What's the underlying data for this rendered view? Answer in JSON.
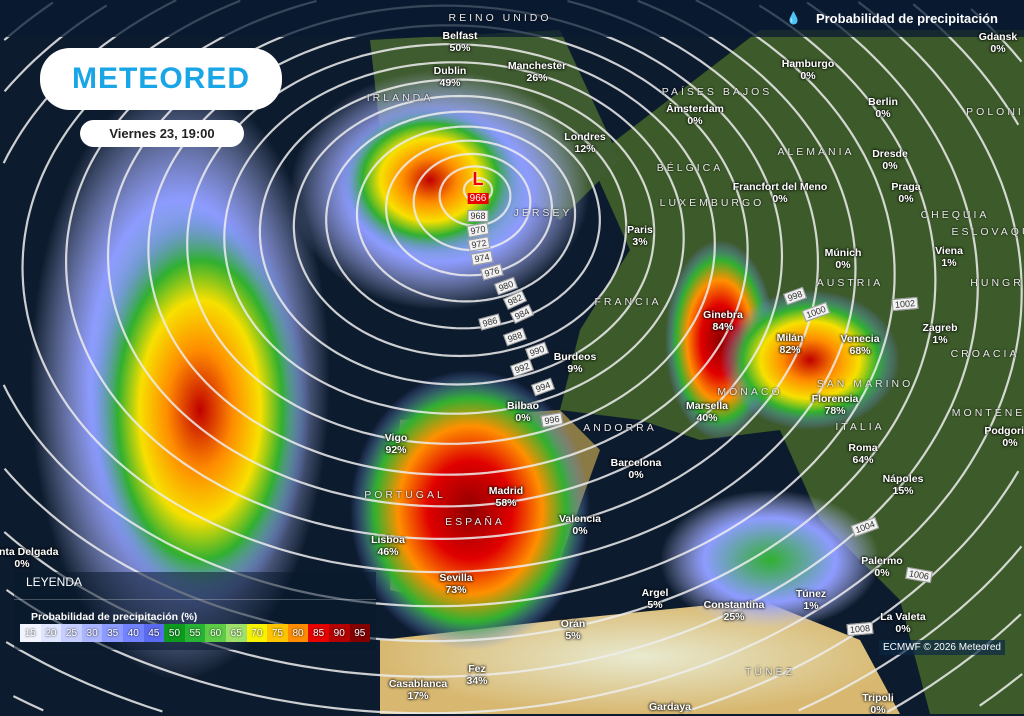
{
  "header": {
    "title": "Probabilidad de precipitación",
    "title_icon": "water-drop-icon"
  },
  "brand": {
    "logo": "METEORED",
    "color": "#1aa6e6"
  },
  "date_label": "Viernes 23, 19:00",
  "legend": {
    "heading": "LEYENDA",
    "title": "Probabilidad de precipitación (%)",
    "steps": [
      {
        "v": "15",
        "c": "#f2f4ff"
      },
      {
        "v": "20",
        "c": "#dfe4ff"
      },
      {
        "v": "25",
        "c": "#c6ceff"
      },
      {
        "v": "30",
        "c": "#aab5ff"
      },
      {
        "v": "35",
        "c": "#8d9bff"
      },
      {
        "v": "40",
        "c": "#7383ff"
      },
      {
        "v": "45",
        "c": "#5a6bf0"
      },
      {
        "v": "50",
        "c": "#0d9a1e"
      },
      {
        "v": "55",
        "c": "#28b335"
      },
      {
        "v": "60",
        "c": "#5ccb45"
      },
      {
        "v": "65",
        "c": "#9ee06a"
      },
      {
        "v": "70",
        "c": "#f7f200"
      },
      {
        "v": "75",
        "c": "#ffc400"
      },
      {
        "v": "80",
        "c": "#ff8c00"
      },
      {
        "v": "85",
        "c": "#e60000"
      },
      {
        "v": "90",
        "c": "#b40000"
      },
      {
        "v": "95",
        "c": "#820000"
      }
    ]
  },
  "credit": "ECMWF © 2026 Meteored",
  "low": {
    "symbol": "L",
    "pressure": "966"
  },
  "cities": [
    {
      "name": "Belfast",
      "p": "50%"
    },
    {
      "name": "Dublin",
      "p": "49%"
    },
    {
      "name": "Manchester",
      "p": "26%"
    },
    {
      "name": "Londres",
      "p": "12%"
    },
    {
      "name": "Paris",
      "p": "3%"
    },
    {
      "name": "Hamburgo",
      "p": "0%"
    },
    {
      "name": "Ámsterdam",
      "p": "0%"
    },
    {
      "name": "Berlin",
      "p": "0%"
    },
    {
      "name": "Dresde",
      "p": "0%"
    },
    {
      "name": "Francfort del Meno",
      "p": "0%"
    },
    {
      "name": "Praga",
      "p": "0%"
    },
    {
      "name": "Múnich",
      "p": "0%"
    },
    {
      "name": "Viena",
      "p": "1%"
    },
    {
      "name": "Gdansk",
      "p": "0%"
    },
    {
      "name": "Zagreb",
      "p": "1%"
    },
    {
      "name": "Ginebra",
      "p": "84%"
    },
    {
      "name": "Milán",
      "p": "82%"
    },
    {
      "name": "Venecia",
      "p": "68%"
    },
    {
      "name": "Florencia",
      "p": "78%"
    },
    {
      "name": "Roma",
      "p": "64%"
    },
    {
      "name": "Nápoles",
      "p": "15%"
    },
    {
      "name": "Burdeos",
      "p": "9%"
    },
    {
      "name": "Bilbao",
      "p": "0%"
    },
    {
      "name": "Vigo",
      "p": "92%"
    },
    {
      "name": "Madrid",
      "p": "58%"
    },
    {
      "name": "Lisboa",
      "p": "46%"
    },
    {
      "name": "Valencia",
      "p": "0%"
    },
    {
      "name": "Barcelona",
      "p": "0%"
    },
    {
      "name": "Sevilla",
      "p": "73%"
    },
    {
      "name": "Marsella",
      "p": "40%"
    },
    {
      "name": "Argel",
      "p": "5%"
    },
    {
      "name": "Orán",
      "p": "5%"
    },
    {
      "name": "Constantina",
      "p": "25%"
    },
    {
      "name": "Túnez",
      "p": "1%"
    },
    {
      "name": "Palermo",
      "p": "0%"
    },
    {
      "name": "La Valeta",
      "p": "0%"
    },
    {
      "name": "Tripoli",
      "p": "0%"
    },
    {
      "name": "Casablanca",
      "p": "17%"
    },
    {
      "name": "Fez",
      "p": "34%"
    },
    {
      "name": "Ponta Delgada",
      "p": "0%"
    },
    {
      "name": "Podgorica",
      "p": "0%"
    },
    {
      "name": "Gardaya",
      "p": ""
    }
  ],
  "countries": [
    "REINO UNIDO",
    "IRLANDA",
    "PAÍSES BAJOS",
    "BÉLGICA",
    "LUXEMBURGO",
    "ALEMANIA",
    "POLONIA",
    "CHEQUIA",
    "AUSTRIA",
    "ESLOVAQUIA",
    "HUNGRÍA",
    "CROACIA",
    "FRANCIA",
    "ANDORRA",
    "PORTUGAL",
    "ESPAÑA",
    "ITALIA",
    "MÓNACO",
    "SAN MARINO",
    "JERSEY",
    "MONTENEGRO",
    "TÚNEZ"
  ],
  "isobars": [
    "968",
    "970",
    "972",
    "974",
    "976",
    "980",
    "982",
    "984",
    "986",
    "988",
    "990",
    "992",
    "994",
    "996",
    "998",
    "1000",
    "1002",
    "1004",
    "1006",
    "1008"
  ]
}
